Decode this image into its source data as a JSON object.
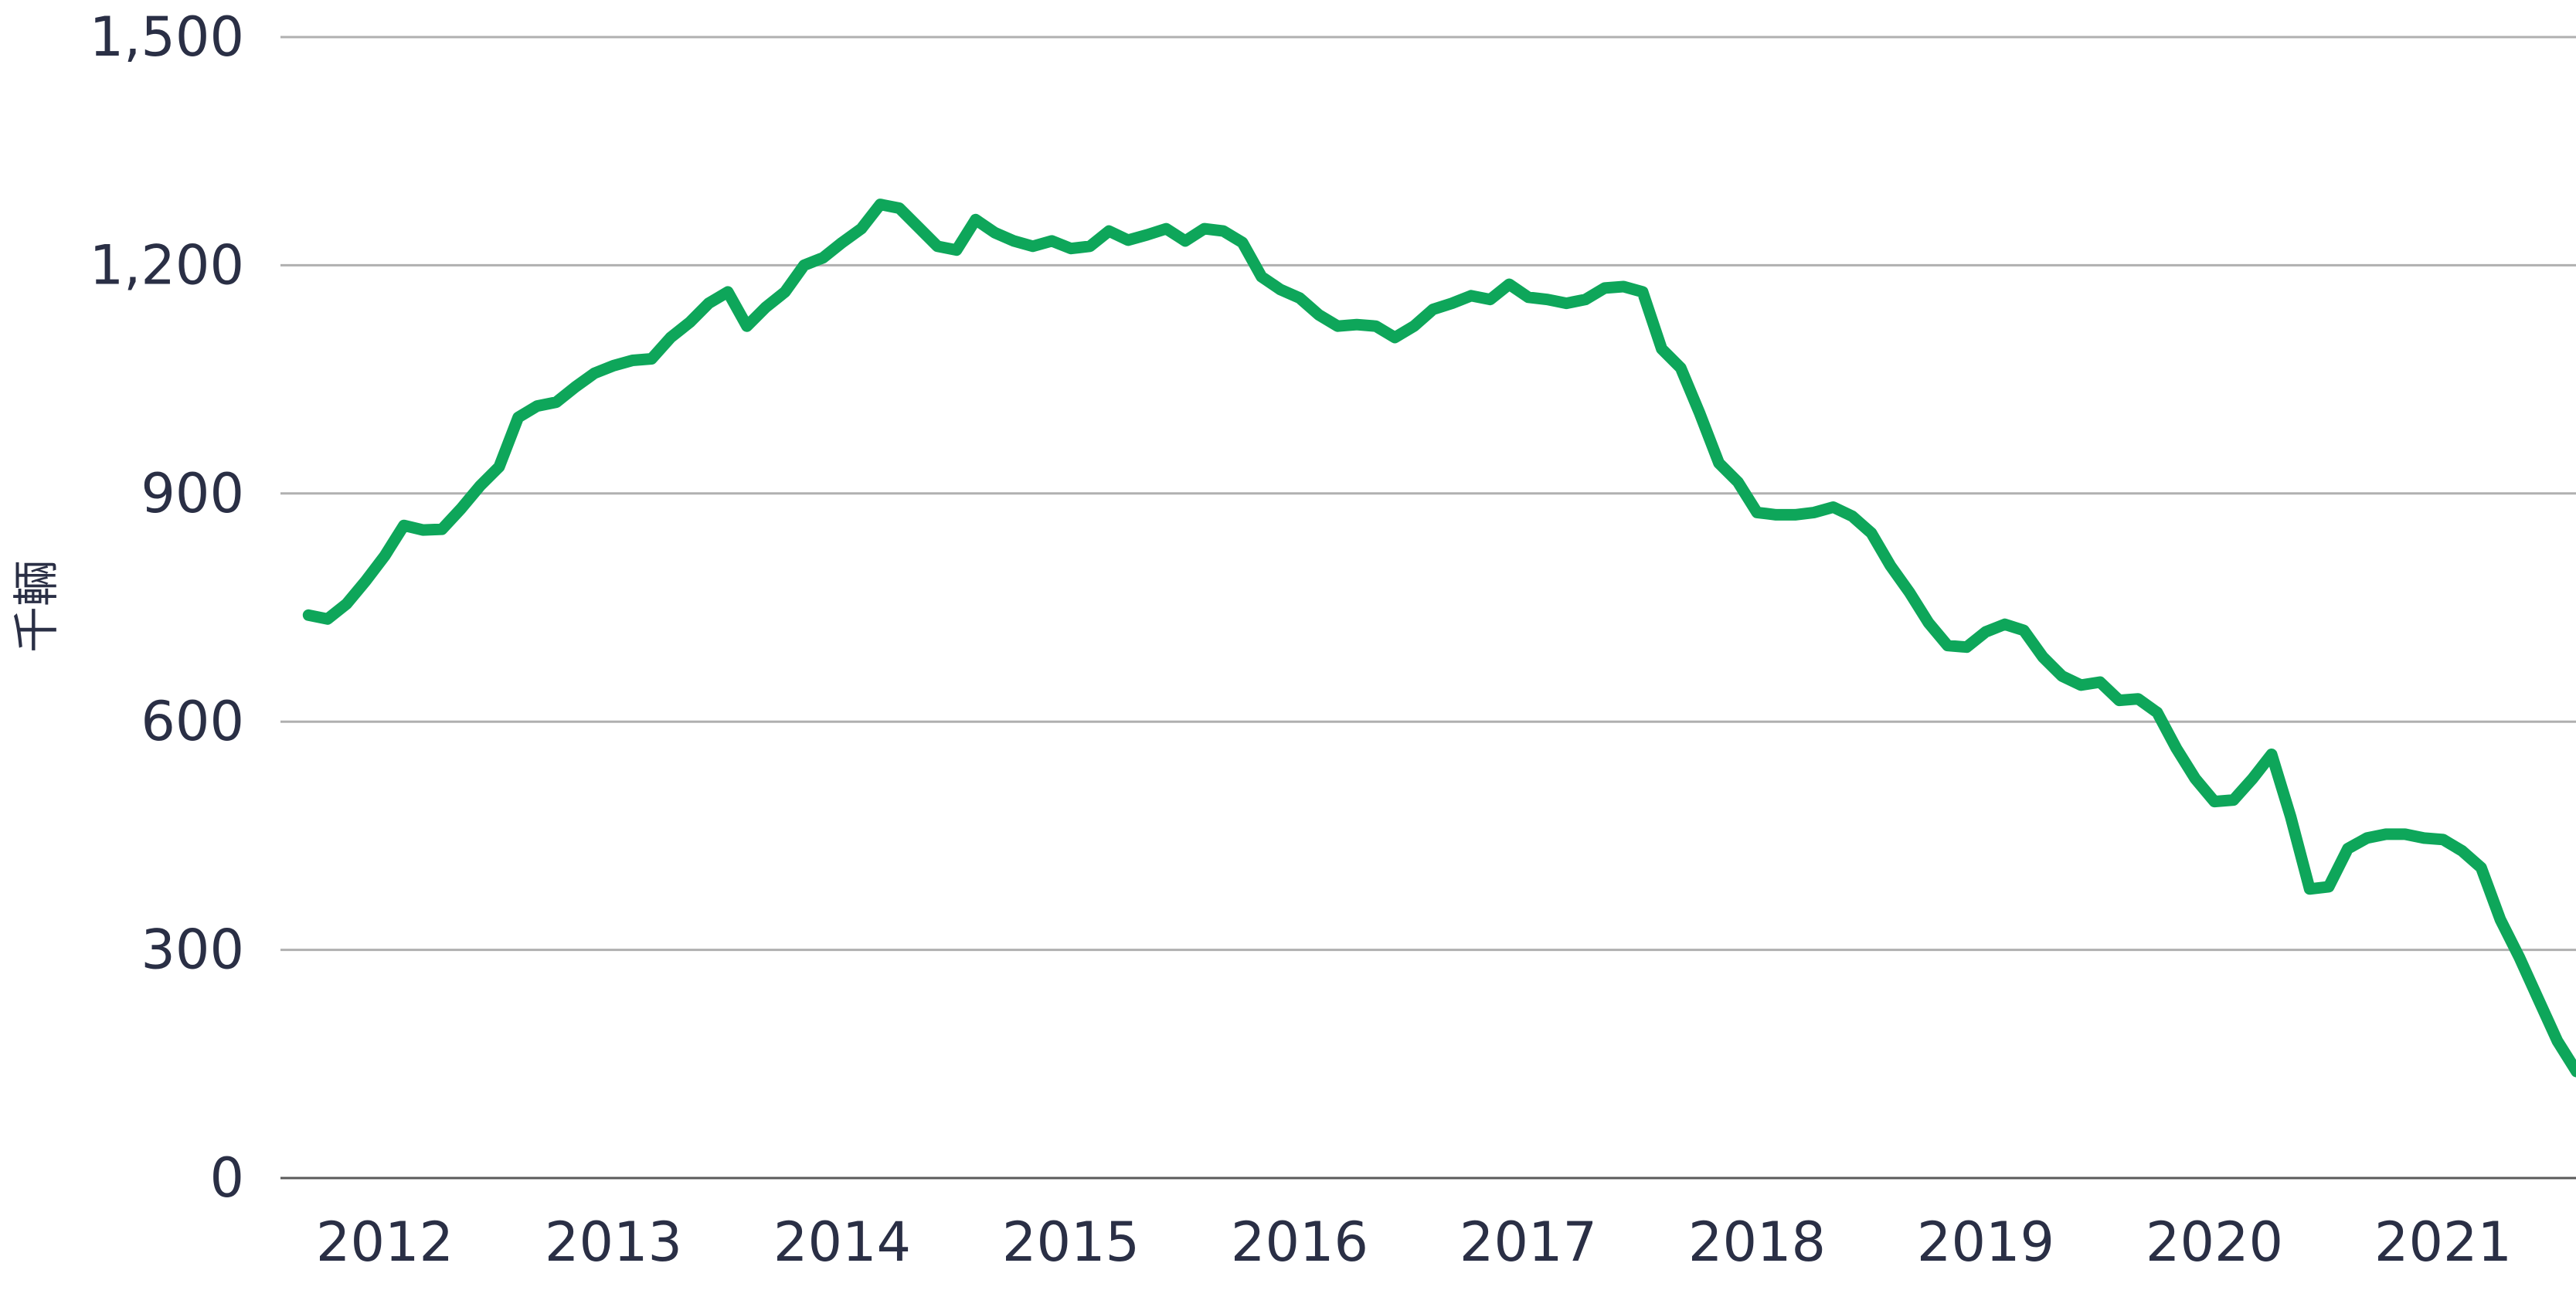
{
  "chart_data": {
    "type": "line",
    "ylabel": "千輛",
    "ylim": [
      0,
      1500
    ],
    "yticks": [
      "0",
      "300",
      "600",
      "900",
      "1,200",
      "1,500"
    ],
    "yticks_values": [
      0,
      300,
      600,
      900,
      1200,
      1500
    ],
    "xticks": [
      "2012",
      "2013",
      "2014",
      "2015",
      "2016",
      "2017",
      "2018",
      "2019",
      "2020",
      "2021"
    ],
    "grid": true,
    "series": [
      {
        "color": "#0ea65a",
        "x": [
          "2011-09",
          "2011-10",
          "2011-11",
          "2011-12",
          "2012-01",
          "2012-02",
          "2012-03",
          "2012-04",
          "2012-05",
          "2012-06",
          "2012-07",
          "2012-08",
          "2012-09",
          "2012-10",
          "2012-11",
          "2012-12",
          "2013-01",
          "2013-02",
          "2013-03",
          "2013-04",
          "2013-05",
          "2013-06",
          "2013-07",
          "2013-08",
          "2013-09",
          "2013-10",
          "2013-11",
          "2013-12",
          "2014-01",
          "2014-02",
          "2014-03",
          "2014-04",
          "2014-05",
          "2014-06",
          "2014-07",
          "2014-08",
          "2014-09",
          "2014-10",
          "2014-11",
          "2014-12",
          "2015-01",
          "2015-02",
          "2015-03",
          "2015-04",
          "2015-05",
          "2015-06",
          "2015-07",
          "2015-08",
          "2015-09",
          "2015-10",
          "2015-11",
          "2015-12",
          "2016-01",
          "2016-02",
          "2016-03",
          "2016-04",
          "2016-05",
          "2016-06",
          "2016-07",
          "2016-08",
          "2016-09",
          "2016-10",
          "2016-11",
          "2016-12",
          "2017-01",
          "2017-02",
          "2017-03",
          "2017-04",
          "2017-05",
          "2017-06",
          "2017-07",
          "2017-08",
          "2017-09",
          "2017-10",
          "2017-11",
          "2017-12",
          "2018-01",
          "2018-02",
          "2018-03",
          "2018-04",
          "2018-05",
          "2018-06",
          "2018-07",
          "2018-08",
          "2018-09",
          "2018-10",
          "2018-11",
          "2018-12",
          "2019-01",
          "2019-02",
          "2019-03",
          "2019-04",
          "2019-05",
          "2019-06",
          "2019-07",
          "2019-08",
          "2019-09",
          "2019-10",
          "2019-11",
          "2019-12",
          "2020-01",
          "2020-02",
          "2020-03",
          "2020-04",
          "2020-05",
          "2020-06",
          "2020-07",
          "2020-08",
          "2020-09",
          "2020-10",
          "2020-11",
          "2020-12",
          "2021-01",
          "2021-02",
          "2021-03",
          "2021-04",
          "2021-05",
          "2021-06",
          "2021-07",
          "2021-08"
        ],
        "values": [
          740,
          735,
          755,
          785,
          818,
          858,
          852,
          853,
          880,
          910,
          935,
          1000,
          1015,
          1020,
          1040,
          1058,
          1068,
          1075,
          1077,
          1105,
          1125,
          1150,
          1165,
          1120,
          1145,
          1165,
          1200,
          1210,
          1230,
          1248,
          1280,
          1275,
          1250,
          1225,
          1220,
          1260,
          1243,
          1232,
          1225,
          1232,
          1222,
          1225,
          1245,
          1233,
          1240,
          1248,
          1232,
          1248,
          1245,
          1230,
          1185,
          1168,
          1157,
          1135,
          1120,
          1122,
          1120,
          1105,
          1120,
          1142,
          1150,
          1160,
          1155,
          1175,
          1158,
          1155,
          1150,
          1155,
          1170,
          1172,
          1165,
          1090,
          1065,
          1005,
          940,
          915,
          875,
          872,
          872,
          875,
          882,
          870,
          848,
          805,
          770,
          730,
          700,
          698,
          718,
          728,
          720,
          685,
          660,
          648,
          652,
          628,
          630,
          612,
          565,
          525,
          495,
          497,
          525,
          557,
          475,
          380,
          383,
          433,
          447,
          452,
          452,
          447,
          445,
          430,
          408,
          340,
          290,
          235,
          180,
          140
        ]
      }
    ]
  }
}
